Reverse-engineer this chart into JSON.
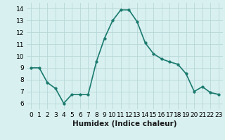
{
  "x": [
    0,
    1,
    2,
    3,
    4,
    5,
    6,
    7,
    8,
    9,
    10,
    11,
    12,
    13,
    14,
    15,
    16,
    17,
    18,
    19,
    20,
    21,
    22,
    23
  ],
  "y": [
    9,
    9,
    7.75,
    7.25,
    6,
    6.75,
    6.75,
    6.75,
    9.5,
    11.5,
    13.0,
    13.9,
    13.9,
    12.9,
    11.1,
    10.2,
    9.75,
    9.5,
    9.3,
    8.5,
    7.0,
    7.4,
    6.9,
    6.75
  ],
  "line_color": "#1a7a6e",
  "marker_color": "#1a7a6e",
  "bg_color": "#d8f0f0",
  "grid_color": "#b8d8d8",
  "xlabel": "Humidex (Indice chaleur)",
  "xlim": [
    -0.5,
    23.5
  ],
  "ylim": [
    5.5,
    14.5
  ],
  "yticks": [
    6,
    7,
    8,
    9,
    10,
    11,
    12,
    13,
    14
  ],
  "xticks": [
    0,
    1,
    2,
    3,
    4,
    5,
    6,
    7,
    8,
    9,
    10,
    11,
    12,
    13,
    14,
    15,
    16,
    17,
    18,
    19,
    20,
    21,
    22,
    23
  ],
  "xlabel_fontsize": 7.5,
  "tick_fontsize": 6.5,
  "line_width": 1.2,
  "marker_size": 2.5
}
